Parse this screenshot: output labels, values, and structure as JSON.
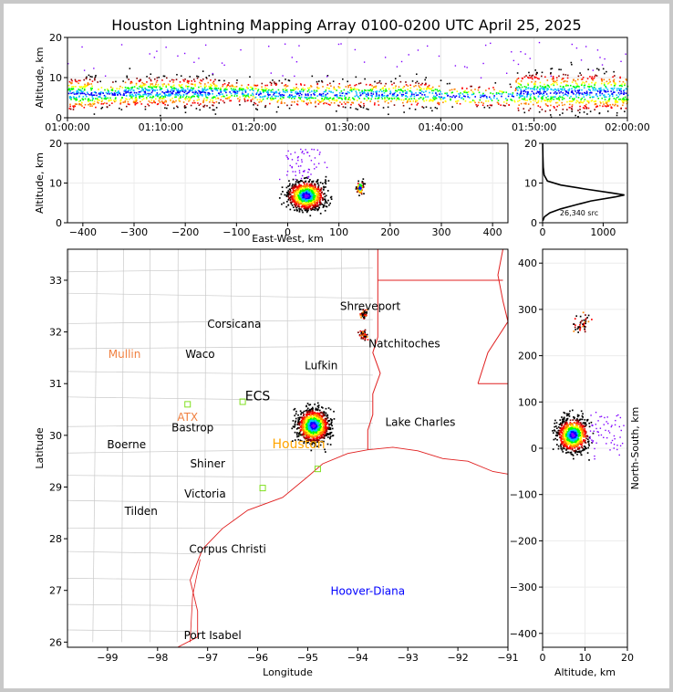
{
  "title": "Houston Lightning Mapping Array 0100-0200 UTC April 25, 2025",
  "chart_data": [
    {
      "panel": "time-altitude",
      "type": "scatter",
      "ylabel": "Altitude, km",
      "ylim": [
        0,
        20
      ],
      "yticks": [
        "0",
        "10",
        "20"
      ],
      "xticks": [
        "01:00:00",
        "01:10:00",
        "01:20:00",
        "01:30:00",
        "01:40:00",
        "01:50:00",
        "02:00:00"
      ],
      "xlim_minutes": [
        0,
        60
      ],
      "source_bands": [
        {
          "t": [
            0,
            3
          ],
          "alt": [
            2,
            10
          ],
          "density": "high"
        },
        {
          "t": [
            3,
            6
          ],
          "alt": [
            3,
            9
          ],
          "density": "medium"
        },
        {
          "t": [
            6,
            16
          ],
          "alt": [
            3,
            10
          ],
          "density": "high"
        },
        {
          "t": [
            16,
            20
          ],
          "alt": [
            4,
            9
          ],
          "density": "medium"
        },
        {
          "t": [
            20,
            30
          ],
          "alt": [
            3,
            9
          ],
          "density": "medium"
        },
        {
          "t": [
            30,
            40
          ],
          "alt": [
            3,
            9
          ],
          "density": "medium"
        },
        {
          "t": [
            40,
            48
          ],
          "alt": [
            3,
            8
          ],
          "density": "low"
        },
        {
          "t": [
            48,
            60
          ],
          "alt": [
            2,
            11
          ],
          "density": "high"
        }
      ]
    },
    {
      "panel": "east-west-altitude",
      "type": "scatter",
      "xlabel": "East-West, km",
      "ylabel": "Altitude, km",
      "xlim": [
        -430,
        430
      ],
      "ylim": [
        0,
        20
      ],
      "xticks": [
        "−400",
        "−300",
        "−200",
        "−100",
        "0",
        "100",
        "200",
        "300",
        "400"
      ],
      "yticks": [
        "0",
        "10",
        "20"
      ],
      "clusters": [
        {
          "x": 35,
          "alt": 7,
          "spread_x": 40,
          "spread_alt": 4,
          "n": 1
        },
        {
          "x": 140,
          "alt": 9,
          "spread_x": 8,
          "spread_alt": 2,
          "n": 1
        }
      ]
    },
    {
      "panel": "altitude-histogram",
      "type": "line",
      "xlim": [
        0,
        1400
      ],
      "ylim": [
        0,
        20
      ],
      "xticks": [
        "0",
        "1000"
      ],
      "yticks": [
        "0",
        "10",
        "20"
      ],
      "annotation": "26,340 src",
      "profile": [
        {
          "alt": 0.5,
          "count": 5
        },
        {
          "alt": 1.5,
          "count": 30
        },
        {
          "alt": 2.5,
          "count": 120
        },
        {
          "alt": 3.5,
          "count": 300
        },
        {
          "alt": 4.5,
          "count": 550
        },
        {
          "alt": 5.5,
          "count": 800
        },
        {
          "alt": 6.5,
          "count": 1200
        },
        {
          "alt": 7.0,
          "count": 1350
        },
        {
          "alt": 7.5,
          "count": 1150
        },
        {
          "alt": 8.5,
          "count": 700
        },
        {
          "alt": 9.5,
          "count": 300
        },
        {
          "alt": 10.5,
          "count": 80
        },
        {
          "alt": 12,
          "count": 25
        },
        {
          "alt": 14,
          "count": 10
        },
        {
          "alt": 17,
          "count": 4
        },
        {
          "alt": 20,
          "count": 2
        }
      ]
    },
    {
      "panel": "plan-view",
      "type": "scatter",
      "xlabel": "Longitude",
      "ylabel": "Latitude",
      "xlim": [
        -99.8,
        -91.0
      ],
      "ylim": [
        25.9,
        33.6
      ],
      "xticks": [
        "−99",
        "−98",
        "−97",
        "−96",
        "−95",
        "−94",
        "−93",
        "−92",
        "−91"
      ],
      "yticks": [
        "26",
        "27",
        "28",
        "29",
        "30",
        "31",
        "32",
        "33"
      ],
      "cities": [
        {
          "name": "Shreveport",
          "lon": -93.75,
          "lat": 32.5,
          "color": "#000000"
        },
        {
          "name": "Corsicana",
          "lon": -96.47,
          "lat": 32.15,
          "color": "#000000"
        },
        {
          "name": "Natchitoches",
          "lon": -93.07,
          "lat": 31.77,
          "color": "#000000"
        },
        {
          "name": "Mullin",
          "lon": -98.66,
          "lat": 31.57,
          "color": "#f08040"
        },
        {
          "name": "Waco",
          "lon": -97.15,
          "lat": 31.57,
          "color": "#000000"
        },
        {
          "name": "Lufkin",
          "lon": -94.73,
          "lat": 31.35,
          "color": "#000000"
        },
        {
          "name": "ECS",
          "lon": -96.0,
          "lat": 30.75,
          "color": "#000000"
        },
        {
          "name": "ATX",
          "lon": -97.4,
          "lat": 30.35,
          "color": "#f08040"
        },
        {
          "name": "Bastrop",
          "lon": -97.3,
          "lat": 30.15,
          "color": "#000000"
        },
        {
          "name": "Lake Charles",
          "lon": -92.75,
          "lat": 30.25,
          "color": "#000000"
        },
        {
          "name": "Boerne",
          "lon": -98.62,
          "lat": 29.82,
          "color": "#000000"
        },
        {
          "name": "Houston",
          "lon": -95.18,
          "lat": 29.82,
          "color": "#ffa500"
        },
        {
          "name": "Shiner",
          "lon": -97.0,
          "lat": 29.45,
          "color": "#000000"
        },
        {
          "name": "Victoria",
          "lon": -97.05,
          "lat": 28.87,
          "color": "#000000"
        },
        {
          "name": "Tilden",
          "lon": -98.33,
          "lat": 28.53,
          "color": "#000000"
        },
        {
          "name": "Corpus Christi",
          "lon": -96.6,
          "lat": 27.8,
          "color": "#000000"
        },
        {
          "name": "Hoover-Diana",
          "lon": -93.8,
          "lat": 26.99,
          "color": "#0000ff"
        },
        {
          "name": "Port Isabel",
          "lon": -96.9,
          "lat": 26.13,
          "color": "#000000"
        }
      ],
      "stations": [
        {
          "lon": -97.4,
          "lat": 30.6
        },
        {
          "lon": -96.3,
          "lat": 30.65
        },
        {
          "lon": -95.9,
          "lat": 28.98
        },
        {
          "lon": -94.8,
          "lat": 29.35
        },
        {
          "lon": -95.1,
          "lat": 30.05
        }
      ],
      "clusters": [
        {
          "lon": -94.9,
          "lat": 30.2,
          "spread": 0.35,
          "n": 1
        },
        {
          "lon": -93.9,
          "lat": 32.35,
          "spread": 0.1,
          "n": 1
        },
        {
          "lon": -93.9,
          "lat": 31.95,
          "spread": 0.1,
          "n": 1
        }
      ]
    },
    {
      "panel": "north-south-altitude",
      "type": "scatter",
      "xlabel": "Altitude, km",
      "ylabel": "North-South, km",
      "xlim": [
        0,
        20
      ],
      "ylim": [
        -430,
        430
      ],
      "xticks": [
        "0",
        "10",
        "20"
      ],
      "yticks": [
        "−400",
        "−300",
        "−200",
        "−100",
        "0",
        "100",
        "200",
        "300",
        "400"
      ],
      "clusters": [
        {
          "alt": 7,
          "y": 30,
          "spread_alt": 4,
          "spread_y": 40,
          "n": 1
        },
        {
          "alt": 9,
          "y": 270,
          "spread_alt": 2,
          "spread_y": 20,
          "n": 1
        }
      ]
    }
  ]
}
